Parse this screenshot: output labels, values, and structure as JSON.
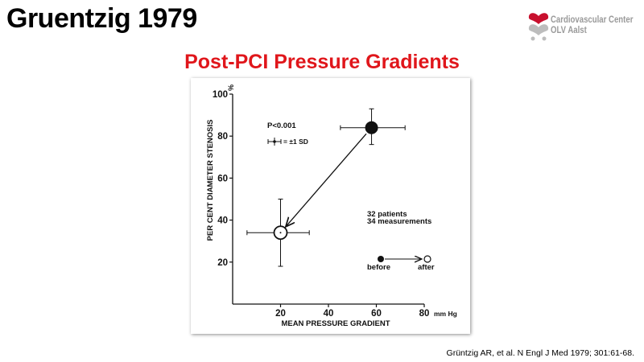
{
  "slide": {
    "title": "Gruentzig 1979",
    "citation": "Grüntzig AR, et al. N Engl J Med 1979; 301:61-68."
  },
  "logo": {
    "line1": "Cardiovascular Center",
    "line2": "OLV Aalst",
    "color": "#c8102e"
  },
  "chart_data": {
    "type": "scatter",
    "title": "Post-PCI Pressure Gradients",
    "title_color": "#e0161b",
    "xlabel": "MEAN PRESSURE GRADIENT",
    "ylabel": "PER CENT DIAMETER STENOSIS",
    "x_unit": "mm Hg",
    "y_unit": "%",
    "xlim": [
      0,
      80
    ],
    "ylim": [
      0,
      100
    ],
    "x_ticks": [
      20,
      40,
      60,
      80
    ],
    "y_ticks": [
      20,
      40,
      60,
      80,
      100
    ],
    "grid": false,
    "points": [
      {
        "label": "before",
        "x": 58,
        "y": 84,
        "x_err": [
          45,
          72
        ],
        "y_err": [
          76,
          93
        ],
        "filled": true
      },
      {
        "label": "after",
        "x": 20,
        "y": 34,
        "x_err": [
          6,
          32
        ],
        "y_err": [
          18,
          50
        ],
        "filled": false
      }
    ],
    "annotations": {
      "p_value": "P<0.001",
      "sd_key": "= ±1 SD",
      "patients": "32 patients",
      "measurements": "34 measurements",
      "before_label": "before",
      "after_label": "after"
    }
  }
}
